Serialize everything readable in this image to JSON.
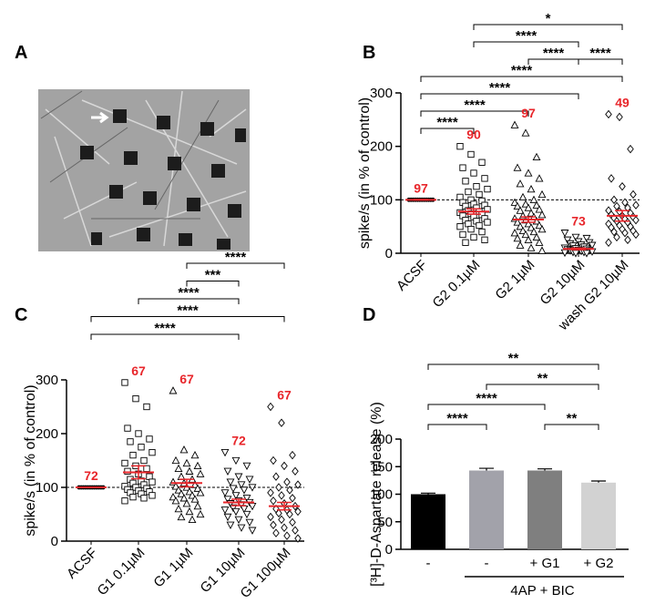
{
  "chart_data": [
    {
      "type": "image",
      "panel": "A"
    },
    {
      "type": "dotplot",
      "panel": "B",
      "ylabel": "spike/s (in % of control)",
      "categories": [
        "ACSF",
        "G2 0.1µM",
        "G2 1µM",
        "G2 10µM",
        "wash G2 10µM"
      ],
      "markers": [
        "circle",
        "square",
        "triangle",
        "triangle-down",
        "diamond"
      ],
      "points": [
        [
          100,
          100,
          100,
          100,
          100,
          100,
          100,
          100,
          100,
          100,
          100,
          100
        ],
        [
          200,
          185,
          170,
          160,
          150,
          140,
          135,
          125,
          120,
          115,
          110,
          105,
          100,
          98,
          95,
          92,
          90,
          88,
          85,
          82,
          80,
          78,
          76,
          74,
          72,
          70,
          68,
          65,
          62,
          60,
          58,
          55,
          52,
          50,
          45,
          40,
          35,
          30,
          25,
          20
        ],
        [
          240,
          225,
          180,
          160,
          150,
          140,
          130,
          120,
          110,
          105,
          100,
          95,
          92,
          90,
          88,
          85,
          82,
          80,
          75,
          72,
          70,
          68,
          65,
          62,
          60,
          58,
          55,
          52,
          50,
          48,
          45,
          42,
          40,
          38,
          35,
          30,
          28,
          25,
          20,
          15,
          10,
          5
        ],
        [
          38,
          30,
          28,
          25,
          22,
          20,
          18,
          16,
          15,
          14,
          12,
          10,
          9,
          8,
          7,
          6,
          5,
          5,
          4,
          3,
          2,
          2,
          1,
          0,
          0
        ],
        [
          260,
          255,
          195,
          140,
          125,
          110,
          100,
          95,
          90,
          88,
          85,
          80,
          78,
          75,
          72,
          70,
          68,
          66,
          64,
          62,
          60,
          58,
          55,
          52,
          50,
          48,
          45,
          42,
          40,
          38,
          35,
          30,
          25,
          20
        ]
      ],
      "means": [
        100,
        78,
        63,
        8,
        70
      ],
      "sems": [
        0.5,
        5,
        5,
        1.5,
        10
      ],
      "n_labels": [
        97,
        90,
        97,
        73,
        49
      ],
      "reference_line": 100,
      "ylim": [
        0,
        300
      ],
      "yticks": [
        0,
        100,
        200,
        300
      ],
      "point_color": "#000000",
      "mean_color": "#e8262b",
      "n_label_color": "#e8262b",
      "brackets": [
        {
          "pair": [
            0,
            1
          ],
          "label": "****"
        },
        {
          "pair": [
            0,
            2
          ],
          "label": "****"
        },
        {
          "pair": [
            0,
            3
          ],
          "label": "****"
        },
        {
          "pair": [
            0,
            4
          ],
          "label": "****"
        },
        {
          "pair": [
            2,
            3
          ],
          "label": "****"
        },
        {
          "pair": [
            1,
            3
          ],
          "label": "****"
        },
        {
          "pair": [
            3,
            4
          ],
          "label": "****"
        },
        {
          "pair": [
            1,
            4
          ],
          "label": "*"
        }
      ]
    },
    {
      "type": "dotplot",
      "panel": "C",
      "ylabel": "spike/s (in % of control)",
      "categories": [
        "ACSF",
        "G1 0.1µM",
        "G1 1µM",
        "G1 10µM",
        "G1 100µM"
      ],
      "markers": [
        "circle",
        "square",
        "triangle",
        "triangle-down",
        "diamond"
      ],
      "points": [
        [
          100,
          100,
          100,
          100,
          100,
          100,
          100,
          100,
          100,
          100,
          100,
          100
        ],
        [
          295,
          265,
          250,
          210,
          200,
          190,
          185,
          175,
          165,
          160,
          150,
          145,
          140,
          135,
          130,
          125,
          120,
          115,
          112,
          110,
          108,
          105,
          102,
          100,
          98,
          96,
          94,
          92,
          90,
          88,
          85,
          82,
          80,
          75
        ],
        [
          280,
          170,
          160,
          150,
          145,
          140,
          135,
          130,
          125,
          120,
          115,
          110,
          108,
          105,
          102,
          100,
          98,
          95,
          92,
          90,
          88,
          85,
          82,
          80,
          78,
          75,
          70,
          65,
          60,
          55,
          50,
          45,
          40
        ],
        [
          165,
          150,
          140,
          130,
          120,
          115,
          110,
          105,
          100,
          98,
          95,
          90,
          85,
          80,
          78,
          75,
          72,
          70,
          68,
          65,
          62,
          60,
          58,
          55,
          50,
          45,
          40,
          35,
          30,
          25,
          20
        ],
        [
          250,
          220,
          160,
          150,
          140,
          130,
          120,
          110,
          105,
          100,
          95,
          90,
          85,
          80,
          75,
          70,
          65,
          60,
          58,
          55,
          52,
          50,
          45,
          40,
          35,
          30,
          25,
          20,
          15,
          10,
          5
        ]
      ],
      "means": [
        100,
        128,
        108,
        72,
        65
      ],
      "sems": [
        0.5,
        12,
        7,
        6,
        7
      ],
      "n_labels": [
        72,
        67,
        67,
        72,
        67
      ],
      "reference_line": 100,
      "ylim": [
        0,
        300
      ],
      "yticks": [
        0,
        100,
        200,
        300
      ],
      "point_color": "#000000",
      "mean_color": "#e8262b",
      "n_label_color": "#e8262b",
      "brackets": [
        {
          "pair": [
            0,
            3
          ],
          "label": "****"
        },
        {
          "pair": [
            0,
            4
          ],
          "label": "****"
        },
        {
          "pair": [
            1,
            3
          ],
          "label": "****"
        },
        {
          "pair": [
            2,
            3
          ],
          "label": "***"
        },
        {
          "pair": [
            2,
            4
          ],
          "label": "****"
        }
      ]
    },
    {
      "type": "bar",
      "panel": "D",
      "ylabel": "[³H]-D-Aspartate release (%)",
      "categories": [
        "-",
        "-",
        "+ G1",
        "+ G2"
      ],
      "values": [
        100,
        143,
        143,
        121
      ],
      "errors": [
        2,
        4,
        3,
        3
      ],
      "colors": [
        "#000000",
        "#a2a2aa",
        "#7f7f7f",
        "#d2d2d2"
      ],
      "group_label": {
        "text": "4AP + BIC",
        "pair": [
          1,
          3
        ]
      },
      "ylim": [
        0,
        200
      ],
      "yticks": [
        0,
        50,
        100,
        150,
        200
      ],
      "brackets": [
        {
          "pair": [
            0,
            1
          ],
          "label": "****"
        },
        {
          "pair": [
            2,
            3
          ],
          "label": "**"
        },
        {
          "pair": [
            0,
            2
          ],
          "label": "****"
        },
        {
          "pair": [
            1,
            3
          ],
          "label": "**"
        },
        {
          "pair": [
            0,
            3
          ],
          "label": "**"
        }
      ]
    }
  ]
}
